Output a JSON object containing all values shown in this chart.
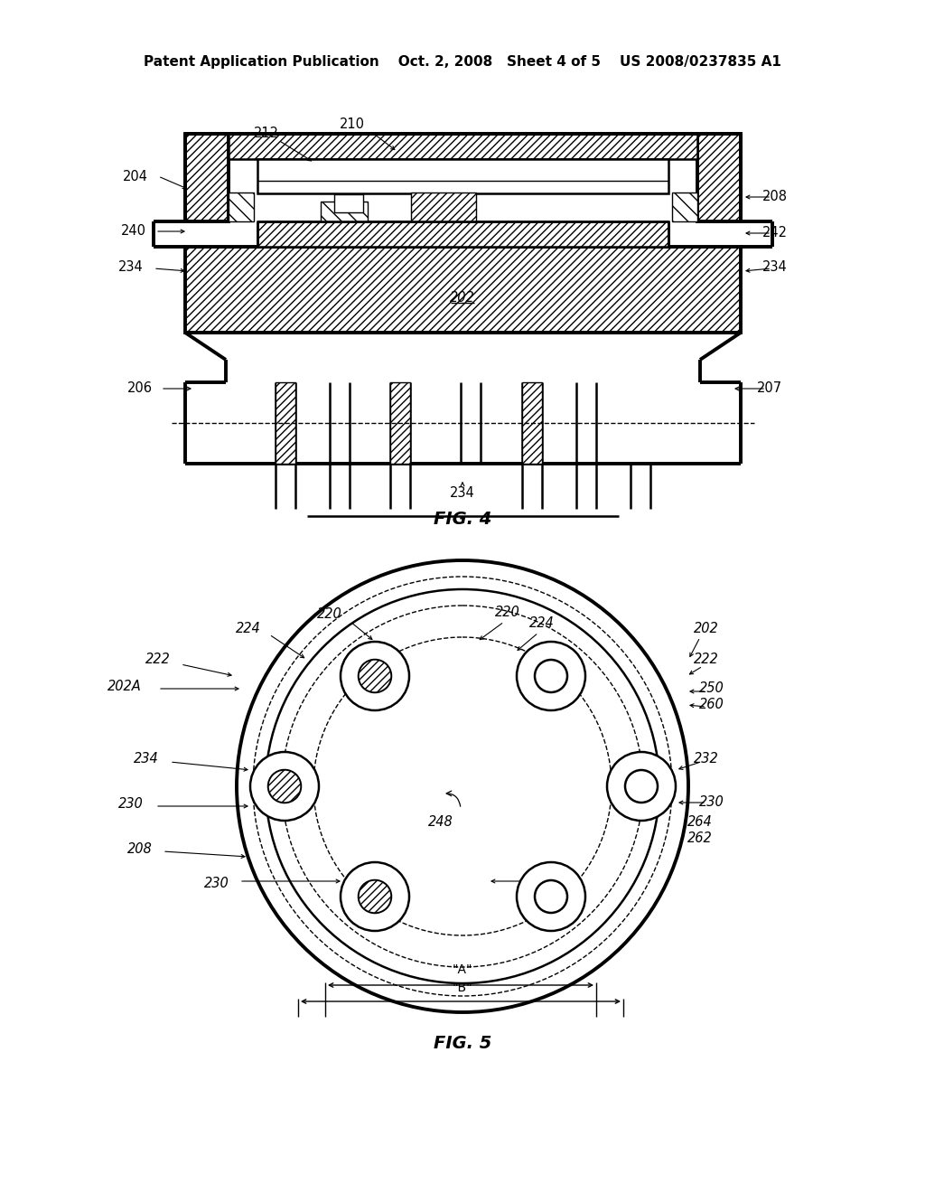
{
  "bg_color": "#ffffff",
  "header": "Patent Application Publication    Oct. 2, 2008   Sheet 4 of 5    US 2008/0237835 A1",
  "fig4_title": "FIG. 4",
  "fig5_title": "FIG. 5"
}
